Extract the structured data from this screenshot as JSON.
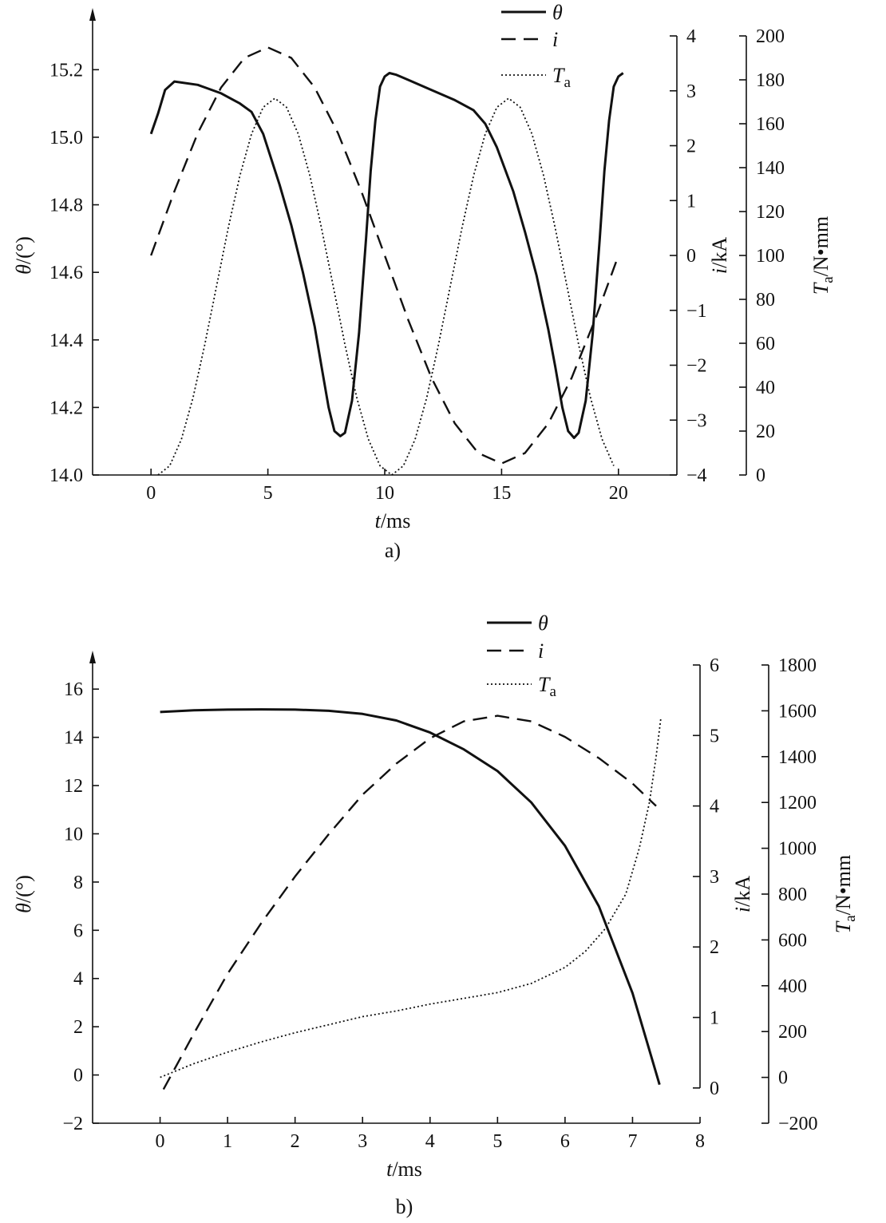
{
  "chart_data": [
    {
      "type": "line",
      "caption": "a)",
      "xlabel": "t/ms",
      "xlim": [
        -2.5,
        22.5
      ],
      "xticks": [
        0,
        5,
        10,
        15,
        20
      ],
      "axes": [
        {
          "id": "theta",
          "label": "θ/(°)",
          "lim": [
            14.0,
            15.3
          ],
          "ticks": [
            14.0,
            14.2,
            14.4,
            14.6,
            14.8,
            15.0,
            15.2
          ],
          "decimals": 1
        },
        {
          "id": "i",
          "label": "i/kA",
          "lim": [
            -4,
            4
          ],
          "ticks": [
            -4,
            -3,
            -2,
            -1,
            0,
            1,
            2,
            3,
            4
          ],
          "decimals": 0
        },
        {
          "id": "Ta",
          "label": "Ta/N•mm",
          "lim": [
            0,
            200
          ],
          "ticks": [
            0,
            20,
            40,
            60,
            80,
            100,
            120,
            140,
            160,
            180,
            200
          ],
          "decimals": 0
        }
      ],
      "series": [
        {
          "name": "θ",
          "axis": "theta",
          "style": "solid",
          "x": [
            0,
            0.3,
            0.6,
            1.0,
            2.0,
            3.0,
            3.8,
            4.3,
            4.8,
            5.5,
            6.0,
            6.5,
            7.0,
            7.3,
            7.6,
            7.85,
            8.1,
            8.3,
            8.6,
            8.9,
            9.2,
            9.4,
            9.6,
            9.8,
            10.0,
            10.2,
            10.5,
            11.0,
            12.0,
            13.0,
            13.8,
            14.3,
            14.8,
            15.5,
            16.0,
            16.5,
            17.0,
            17.3,
            17.6,
            17.85,
            18.1,
            18.3,
            18.6,
            18.9,
            19.2,
            19.4,
            19.6,
            19.8,
            20.0,
            20.2
          ],
          "y": [
            15.01,
            15.07,
            15.14,
            15.165,
            15.155,
            15.13,
            15.1,
            15.075,
            15.01,
            14.86,
            14.74,
            14.6,
            14.44,
            14.32,
            14.2,
            14.13,
            14.115,
            14.125,
            14.22,
            14.42,
            14.7,
            14.9,
            15.05,
            15.15,
            15.18,
            15.19,
            15.185,
            15.17,
            15.14,
            15.11,
            15.08,
            15.04,
            14.97,
            14.84,
            14.72,
            14.59,
            14.43,
            14.32,
            14.2,
            14.13,
            14.11,
            14.125,
            14.22,
            14.42,
            14.7,
            14.9,
            15.05,
            15.15,
            15.18,
            15.19
          ]
        },
        {
          "name": "i",
          "axis": "i",
          "style": "dashed",
          "x": [
            0,
            1,
            2,
            3,
            4,
            5,
            6,
            7,
            8,
            9,
            10,
            11,
            12,
            13,
            14,
            15,
            16,
            17,
            18,
            19,
            20
          ],
          "y": [
            0,
            1.17,
            2.23,
            3.06,
            3.6,
            3.79,
            3.6,
            3.06,
            2.23,
            1.17,
            0,
            -1.17,
            -2.23,
            -3.06,
            -3.6,
            -3.79,
            -3.6,
            -3.06,
            -2.23,
            -1.17,
            0
          ]
        },
        {
          "name": "Ta",
          "axis": "Ta",
          "style": "dotted",
          "x": [
            0.3,
            0.8,
            1.3,
            1.8,
            2.3,
            2.8,
            3.3,
            3.8,
            4.3,
            4.8,
            5.3,
            5.8,
            6.3,
            6.8,
            7.3,
            7.8,
            8.3,
            8.8,
            9.3,
            9.8,
            10.3,
            10.8,
            11.3,
            11.8,
            12.3,
            12.8,
            13.3,
            13.8,
            14.3,
            14.8,
            15.3,
            15.8,
            16.3,
            16.8,
            17.3,
            17.8,
            18.3,
            18.8,
            19.3,
            19.8
          ],
          "y": [
            0,
            4.2,
            16.3,
            35.3,
            59.3,
            85.8,
            112.3,
            136.3,
            155.3,
            167.5,
            171.6,
            167.5,
            155.3,
            136.3,
            112.3,
            85.8,
            59.3,
            35.3,
            16.3,
            4.2,
            0,
            4.2,
            16.3,
            35.3,
            59.3,
            85.8,
            112.3,
            136.3,
            155.3,
            167.5,
            171.6,
            167.5,
            155.3,
            136.3,
            112.3,
            85.8,
            59.3,
            35.3,
            16.3,
            4.2
          ]
        }
      ]
    },
    {
      "type": "line",
      "caption": "b)",
      "xlabel": "t/ms",
      "xlim": [
        -1.0,
        8.0
      ],
      "xticks": [
        0,
        1,
        2,
        3,
        4,
        5,
        6,
        7,
        8
      ],
      "axes": [
        {
          "id": "theta",
          "label": "θ/(°)",
          "lim": [
            -2,
            17
          ],
          "ticks": [
            -2,
            0,
            2,
            4,
            6,
            8,
            10,
            12,
            14,
            16
          ],
          "decimals": 0
        },
        {
          "id": "i",
          "label": "i/kA",
          "lim": [
            -0.5,
            6
          ],
          "ticks": [
            0,
            1,
            2,
            3,
            4,
            5,
            6
          ],
          "decimals": 0
        },
        {
          "id": "Ta",
          "label": "Ta/N•mm",
          "lim": [
            -200,
            1800
          ],
          "ticks": [
            -200,
            0,
            200,
            400,
            600,
            800,
            1000,
            1200,
            1400,
            1600,
            1800
          ],
          "decimals": 0
        }
      ],
      "series": [
        {
          "name": "θ",
          "axis": "theta",
          "style": "solid",
          "x": [
            0,
            0.5,
            1.0,
            1.5,
            2.0,
            2.5,
            3.0,
            3.5,
            4.0,
            4.5,
            5.0,
            5.5,
            6.0,
            6.5,
            7.0,
            7.2,
            7.4
          ],
          "y": [
            15.05,
            15.12,
            15.15,
            15.16,
            15.15,
            15.1,
            14.97,
            14.7,
            14.2,
            13.5,
            12.6,
            11.3,
            9.5,
            7.0,
            3.4,
            1.5,
            -0.4
          ]
        },
        {
          "name": "i",
          "axis": "i",
          "style": "dashed",
          "x": [
            0.05,
            0.5,
            1.0,
            1.5,
            2.0,
            2.5,
            3.0,
            3.5,
            4.0,
            4.5,
            5.0,
            5.5,
            6.0,
            6.5,
            7.0,
            7.35
          ],
          "y": [
            -0.02,
            0.77,
            1.62,
            2.34,
            3.0,
            3.6,
            4.16,
            4.6,
            4.96,
            5.2,
            5.28,
            5.2,
            4.98,
            4.68,
            4.32,
            4.0
          ]
        },
        {
          "name": "Ta",
          "axis": "Ta",
          "style": "dotted",
          "x": [
            0,
            0.5,
            1.0,
            1.5,
            2.0,
            2.5,
            3.0,
            3.5,
            4.0,
            4.5,
            5.0,
            5.5,
            6.0,
            6.3,
            6.6,
            6.9,
            7.1,
            7.25,
            7.35,
            7.42
          ],
          "y": [
            0,
            60,
            110,
            155,
            195,
            230,
            265,
            290,
            320,
            345,
            370,
            410,
            480,
            550,
            650,
            800,
            1000,
            1200,
            1400,
            1570
          ]
        }
      ]
    }
  ]
}
